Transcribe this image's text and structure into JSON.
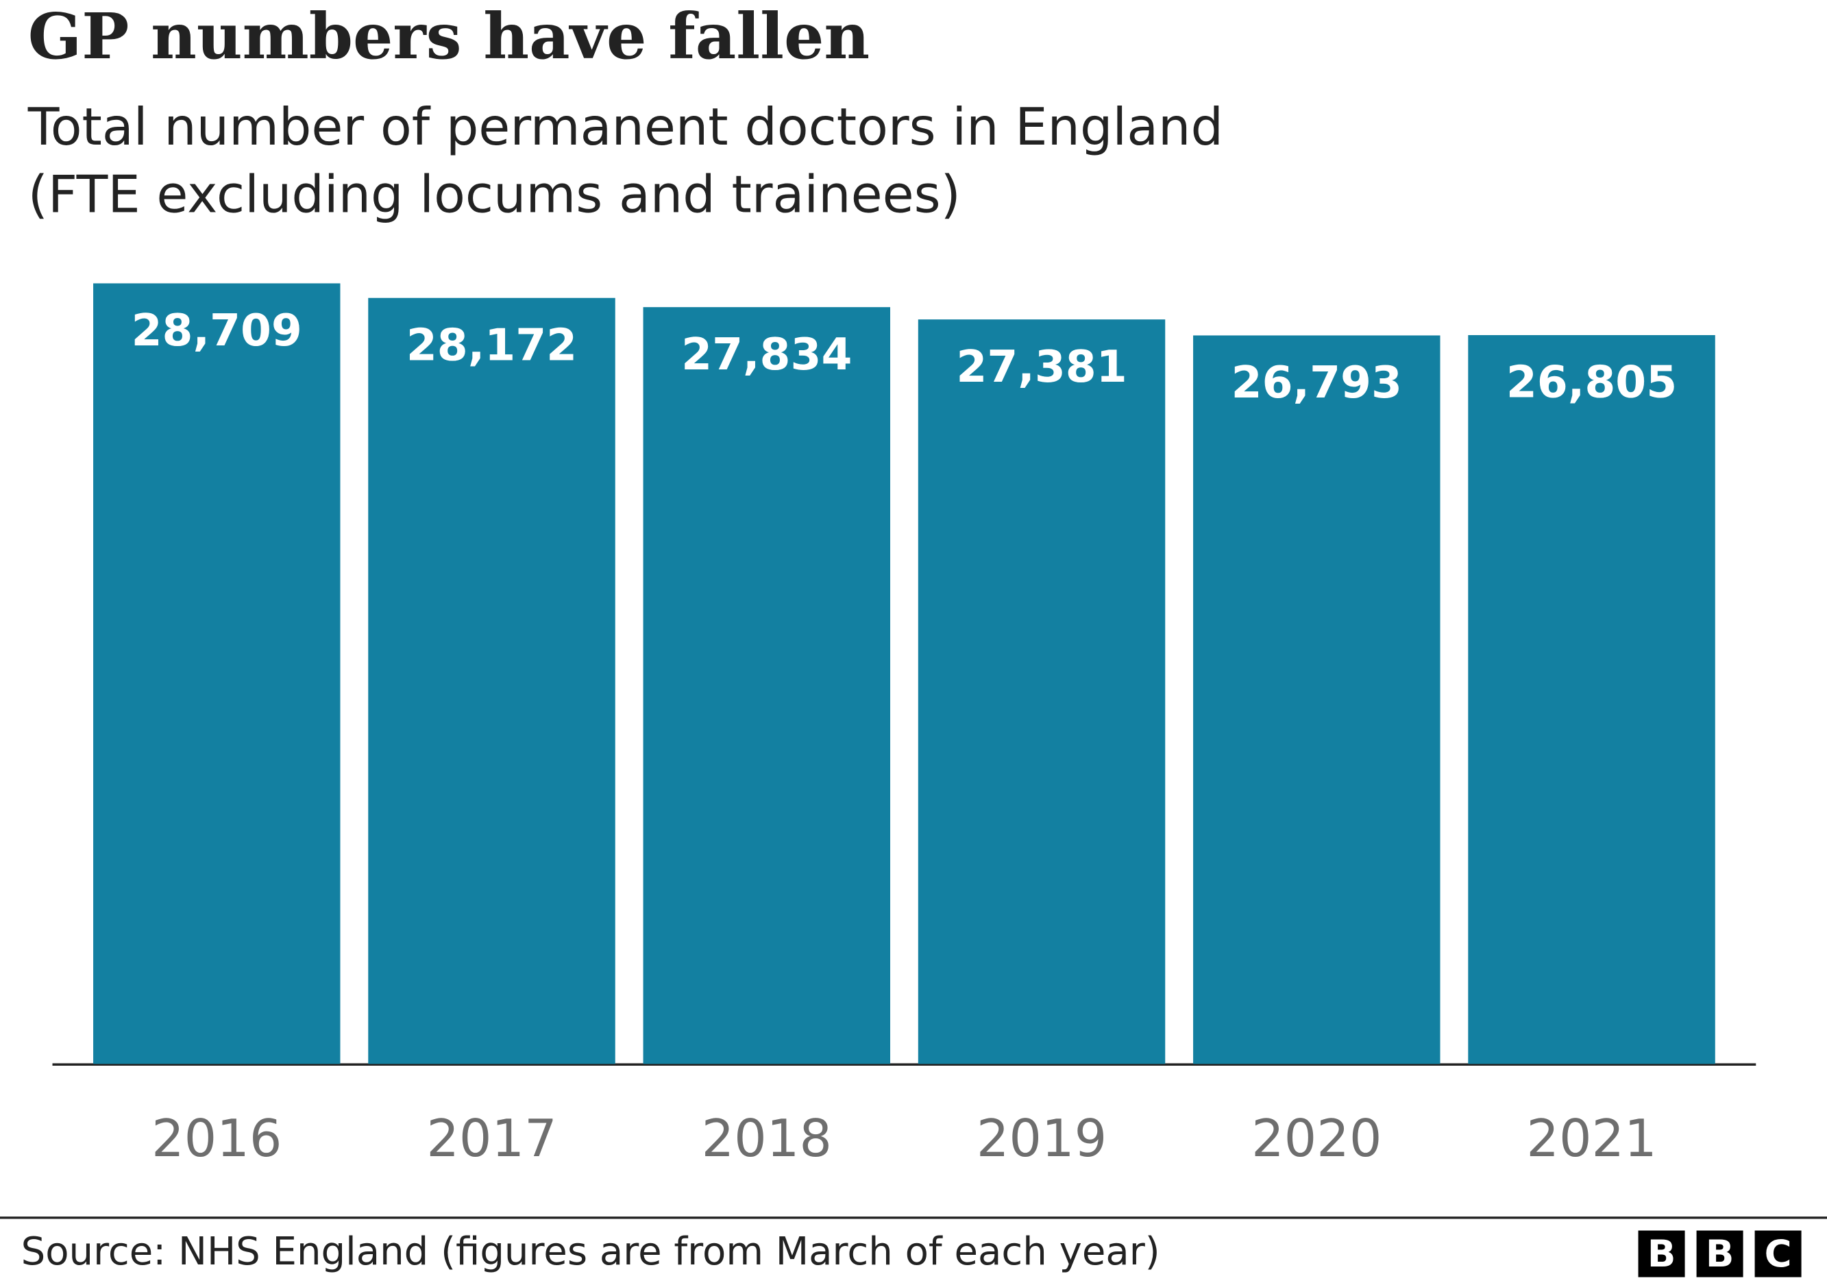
{
  "chart_data": {
    "type": "bar",
    "title": "GP numbers have fallen",
    "subtitle": [
      "Total number of permanent doctors in England",
      "(FTE excluding locums and trainees)"
    ],
    "categories": [
      "2016",
      "2017",
      "2018",
      "2019",
      "2020",
      "2021"
    ],
    "values": [
      28709,
      28172,
      27834,
      27381,
      26793,
      26805
    ],
    "value_labels": [
      "28,709",
      "28,172",
      "27,834",
      "27,381",
      "26,793",
      "26,805"
    ],
    "color": "#1380a1",
    "ylim": [
      0,
      30000
    ],
    "grid": false,
    "source": "Source: NHS England (figures are from March of each year)",
    "logo": [
      "B",
      "B",
      "C"
    ]
  }
}
